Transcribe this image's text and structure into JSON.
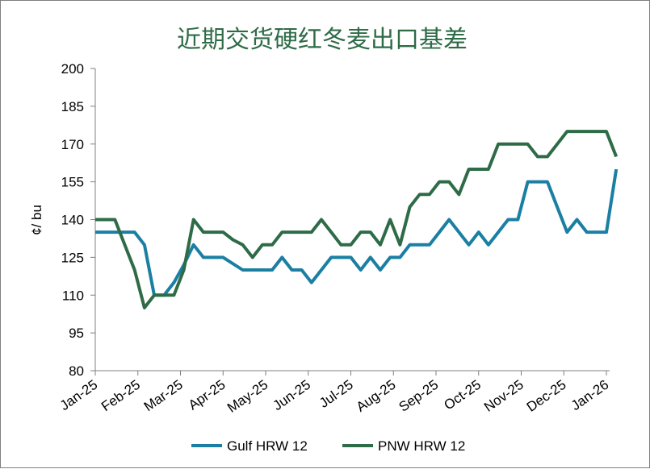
{
  "chart_data": {
    "type": "line",
    "title": "近期交货硬红冬麦出口基差",
    "title_color": "#2e6b47",
    "ylabel": "¢/ bu",
    "xlabel": "",
    "ylim": [
      80,
      200
    ],
    "yticks": [
      80,
      95,
      110,
      125,
      140,
      155,
      170,
      185,
      200
    ],
    "xticks": [
      "Jan-25",
      "Feb-25",
      "Mar-25",
      "Apr-25",
      "May-25",
      "Jun-25",
      "Jul-25",
      "Aug-25",
      "Sep-25",
      "Oct-25",
      "Nov-25",
      "Dec-25",
      "Jan-26"
    ],
    "x_unit": "weeks from Jan-25",
    "grid": false,
    "legend_position": "bottom",
    "series": [
      {
        "name": "Gulf HRW 12",
        "color": "#1a7fa3",
        "points": [
          [
            0,
            135
          ],
          [
            2,
            135
          ],
          [
            4,
            135
          ],
          [
            5,
            130
          ],
          [
            6,
            110
          ],
          [
            7,
            110
          ],
          [
            8,
            115
          ],
          [
            9,
            122
          ],
          [
            10,
            130
          ],
          [
            11,
            125
          ],
          [
            13,
            125
          ],
          [
            15,
            120
          ],
          [
            17,
            120
          ],
          [
            18,
            120
          ],
          [
            19,
            125
          ],
          [
            20,
            120
          ],
          [
            21,
            120
          ],
          [
            22,
            115
          ],
          [
            23,
            120
          ],
          [
            24,
            125
          ],
          [
            26,
            125
          ],
          [
            27,
            120
          ],
          [
            28,
            125
          ],
          [
            29,
            120
          ],
          [
            30,
            125
          ],
          [
            31,
            125
          ],
          [
            32,
            130
          ],
          [
            34,
            130
          ],
          [
            35,
            135
          ],
          [
            36,
            140
          ],
          [
            37,
            135
          ],
          [
            38,
            130
          ],
          [
            39,
            135
          ],
          [
            40,
            130
          ],
          [
            41,
            135
          ],
          [
            42,
            140
          ],
          [
            43,
            140
          ],
          [
            44,
            155
          ],
          [
            45,
            155
          ],
          [
            46,
            155
          ],
          [
            47,
            145
          ],
          [
            48,
            135
          ],
          [
            49,
            140
          ],
          [
            50,
            135
          ],
          [
            52,
            135
          ],
          [
            53,
            160
          ]
        ]
      },
      {
        "name": "PNW HRW 12",
        "color": "#2e6b47",
        "points": [
          [
            0,
            140
          ],
          [
            2,
            140
          ],
          [
            3,
            130
          ],
          [
            4,
            120
          ],
          [
            5,
            105
          ],
          [
            6,
            110
          ],
          [
            7,
            110
          ],
          [
            8,
            110
          ],
          [
            9,
            120
          ],
          [
            10,
            140
          ],
          [
            11,
            135
          ],
          [
            13,
            135
          ],
          [
            14,
            132
          ],
          [
            15,
            130
          ],
          [
            16,
            125
          ],
          [
            17,
            130
          ],
          [
            18,
            130
          ],
          [
            19,
            135
          ],
          [
            21,
            135
          ],
          [
            22,
            135
          ],
          [
            23,
            140
          ],
          [
            24,
            135
          ],
          [
            25,
            130
          ],
          [
            26,
            130
          ],
          [
            27,
            135
          ],
          [
            28,
            135
          ],
          [
            29,
            130
          ],
          [
            30,
            140
          ],
          [
            31,
            130
          ],
          [
            32,
            145
          ],
          [
            33,
            150
          ],
          [
            34,
            150
          ],
          [
            35,
            155
          ],
          [
            36,
            155
          ],
          [
            37,
            150
          ],
          [
            38,
            160
          ],
          [
            39,
            160
          ],
          [
            40,
            160
          ],
          [
            41,
            170
          ],
          [
            42,
            170
          ],
          [
            43,
            170
          ],
          [
            44,
            170
          ],
          [
            45,
            165
          ],
          [
            46,
            165
          ],
          [
            47,
            170
          ],
          [
            48,
            175
          ],
          [
            50,
            175
          ],
          [
            52,
            175
          ],
          [
            53,
            165
          ]
        ]
      }
    ]
  }
}
